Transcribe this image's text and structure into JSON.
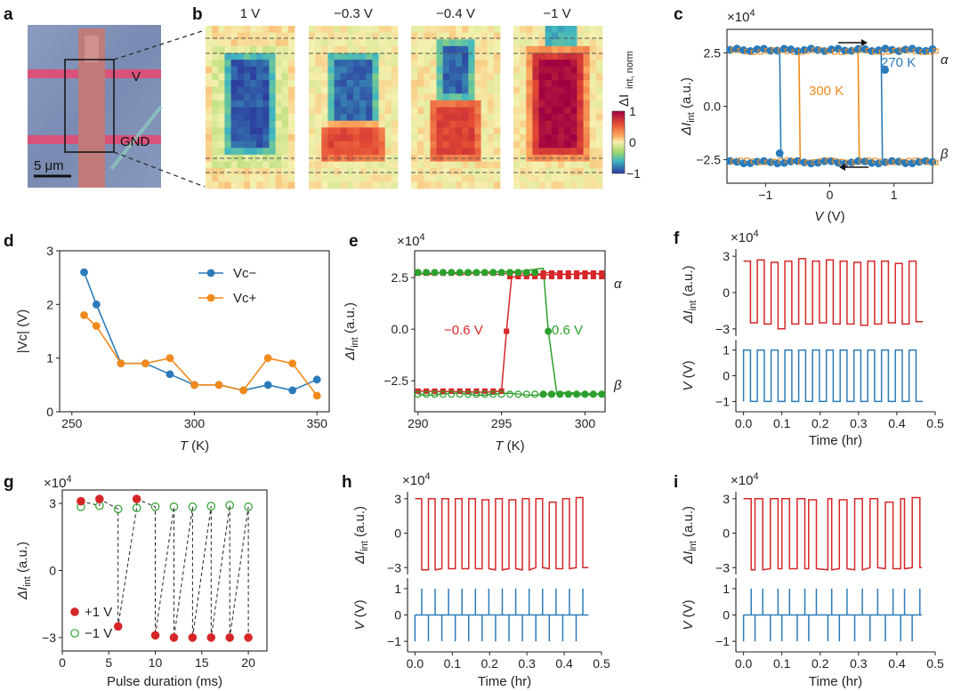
{
  "panel_labels": {
    "a": "a",
    "b": "b",
    "c": "c",
    "d": "d",
    "e": "e",
    "f": "f",
    "g": "g",
    "h": "h",
    "i": "i"
  },
  "colors": {
    "blue": "#2b7bba",
    "orange": "#f08a1c",
    "red": "#d62728",
    "green": "#2ca02c",
    "dark": "#222222"
  },
  "exponent_label": "×10",
  "exponent_power": "4",
  "panel_a": {
    "label_v": "V",
    "label_gnd": "GND",
    "scale_bar": "5 μm",
    "scale_bar_value": 5,
    "scale_bar_unit": "μm"
  },
  "panel_b": {
    "voltages": [
      "1 V",
      "−0.3 V",
      "−0.4 V",
      "−1 V"
    ],
    "colorbar_title": "ΔI",
    "colorbar_sub": "int, norm",
    "colorbar_ticks": [
      "1",
      "0",
      "−1"
    ]
  },
  "chart_data": [
    {
      "panel": "c",
      "type": "line",
      "title": "",
      "xlabel": "V (V)",
      "ylabel": "ΔIint (a.u.)",
      "xlim": [
        -1.6,
        1.6
      ],
      "ylim": [
        -3.6,
        3.6
      ],
      "y_scale": "×10^4",
      "xticks": [
        "−1",
        "0",
        "1"
      ],
      "yticks": [
        "2.5",
        "0.0",
        "−2.5"
      ],
      "state_labels": [
        "α",
        "β"
      ],
      "series": [
        {
          "name": "270 K",
          "color": "blue",
          "x": [
            -1.55,
            -1.3,
            -1.0,
            -0.8,
            -0.75,
            -0.6,
            -0.3,
            0.0,
            0.3,
            0.6,
            0.75,
            0.8,
            0.85,
            0.9,
            1.0,
            1.3,
            1.55
          ],
          "y": [
            2.65,
            2.62,
            2.65,
            2.6,
            -2.2,
            -2.55,
            -2.6,
            -2.58,
            -2.6,
            -2.55,
            -2.6,
            -2.62,
            1.7,
            -2.5,
            -2.6,
            -2.65,
            -2.6
          ],
          "loop_up_x": [
            -1.55,
            0.5,
            0.75,
            0.8,
            0.82,
            1.55
          ],
          "loop_up_y": [
            2.65,
            2.62,
            2.62,
            2.6,
            -2.55,
            -2.6
          ],
          "loop_down_x": [
            1.55,
            -0.55,
            -0.72,
            -0.76,
            -0.78,
            -1.55
          ],
          "loop_down_y": [
            -2.6,
            -2.58,
            -2.6,
            -2.2,
            2.62,
            2.65
          ]
        },
        {
          "name": "300 K",
          "color": "orange",
          "loop_up_x": [
            -1.55,
            0.3,
            0.44,
            0.46,
            1.55
          ],
          "loop_up_y": [
            2.6,
            2.6,
            2.58,
            -2.6,
            -2.62
          ],
          "loop_down_x": [
            1.55,
            -0.4,
            -0.46,
            -0.48,
            -1.55
          ],
          "loop_down_y": [
            -2.62,
            -2.6,
            -2.58,
            2.58,
            2.6
          ]
        }
      ]
    },
    {
      "panel": "d",
      "type": "line",
      "xlabel": "T (K)",
      "ylabel": "|Vc| (V)",
      "xlim": [
        245,
        355
      ],
      "ylim": [
        0,
        3
      ],
      "xticks": [
        "250",
        "300",
        "350"
      ],
      "yticks": [
        "0",
        "1",
        "2",
        "3"
      ],
      "x": [
        255,
        260,
        270,
        280,
        290,
        300,
        310,
        320,
        330,
        340,
        350
      ],
      "series": [
        {
          "name": "Vc−",
          "color": "blue",
          "values": [
            2.6,
            2.0,
            0.9,
            0.9,
            0.7,
            0.5,
            0.5,
            0.4,
            0.5,
            0.4,
            0.6
          ]
        },
        {
          "name": "Vc+",
          "color": "orange",
          "values": [
            1.8,
            1.6,
            0.9,
            0.9,
            1.0,
            0.5,
            0.5,
            0.4,
            1.0,
            0.9,
            0.3
          ]
        }
      ]
    },
    {
      "panel": "e",
      "type": "line",
      "xlabel": "T (K)",
      "ylabel": "ΔIint (a.u.)",
      "xlim": [
        289.8,
        301.2
      ],
      "ylim": [
        -4.0,
        3.8
      ],
      "y_scale": "×10^4",
      "xticks": [
        "290",
        "295",
        "300"
      ],
      "yticks": [
        "2.5",
        "0.0",
        "−2.5"
      ],
      "state_labels": [
        "α",
        "β"
      ],
      "series": [
        {
          "name": "−0.6 V",
          "color": "red"
        },
        {
          "name": "0.6 V",
          "color": "green"
        }
      ]
    },
    {
      "panel": "f",
      "type": "line",
      "xlabel": "Time (hr)",
      "ylabel_top": "ΔIint (a.u.)",
      "ylabel_bottom": "V (V)",
      "xlim": [
        -0.02,
        0.5
      ],
      "xticks": [
        "0.0",
        "0.1",
        "0.2",
        "0.3",
        "0.4",
        "0.5"
      ],
      "yticks_top": [
        "3",
        "0",
        "−3"
      ],
      "yticks_bottom": [
        "1",
        "0",
        "−1"
      ]
    },
    {
      "panel": "g",
      "type": "scatter",
      "xlabel": "Pulse duration (ms)",
      "ylabel": "ΔIint (a.u.)",
      "xlim": [
        0,
        22
      ],
      "ylim": [
        -3.6,
        3.6
      ],
      "y_scale": "×10^4",
      "xticks": [
        "0",
        "5",
        "10",
        "15",
        "20"
      ],
      "yticks": [
        "3",
        "0",
        "−3"
      ],
      "x": [
        2,
        4,
        6,
        8,
        10,
        12,
        14,
        16,
        18,
        20
      ],
      "series": [
        {
          "name": "+1 V",
          "color": "red",
          "values": [
            3.1,
            3.2,
            -2.5,
            3.2,
            -2.9,
            -3.0,
            -3.0,
            -3.0,
            -3.0,
            -3.0
          ]
        },
        {
          "name": "−1 V",
          "color": "green",
          "values": [
            2.85,
            2.9,
            2.75,
            2.8,
            2.85,
            2.85,
            2.85,
            2.88,
            2.92,
            2.85
          ]
        }
      ]
    },
    {
      "panel": "h",
      "type": "line",
      "xlabel": "Time (hr)",
      "ylabel_top": "ΔIint (a.u.)",
      "ylabel_bottom": "V (V)",
      "xlim": [
        -0.02,
        0.5
      ],
      "xticks": [
        "0.0",
        "0.1",
        "0.2",
        "0.3",
        "0.4",
        "0.5"
      ],
      "yticks_top": [
        "3",
        "0",
        "−3"
      ],
      "yticks_bottom": [
        "1",
        "0",
        "−1"
      ]
    },
    {
      "panel": "i",
      "type": "line",
      "xlabel": "Time (hr)",
      "ylabel_top": "ΔIint (a.u.)",
      "ylabel_bottom": "V (V)",
      "xlim": [
        -0.02,
        0.5
      ],
      "xticks": [
        "0.0",
        "0.1",
        "0.2",
        "0.3",
        "0.4",
        "0.5"
      ],
      "yticks_top": [
        "3",
        "0",
        "−3"
      ],
      "yticks_bottom": [
        "1",
        "0",
        "−1"
      ]
    }
  ]
}
